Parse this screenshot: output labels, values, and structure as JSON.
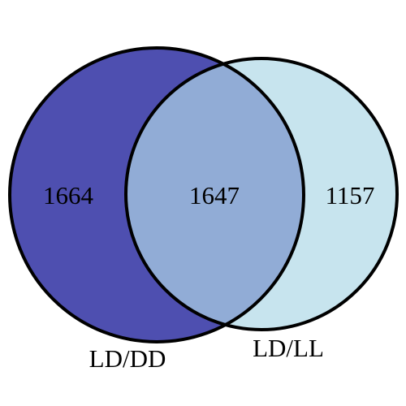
{
  "venn": {
    "sets": [
      {
        "label": "LD/DD",
        "color": "#4e4fb0"
      },
      {
        "label": "LD/LL",
        "color": "#c7e4ee"
      }
    ],
    "overlap_color": "#91acd6",
    "outline_color": "#000000",
    "counts": {
      "left_only": "1664",
      "both": "1647",
      "right_only": "1157"
    }
  }
}
